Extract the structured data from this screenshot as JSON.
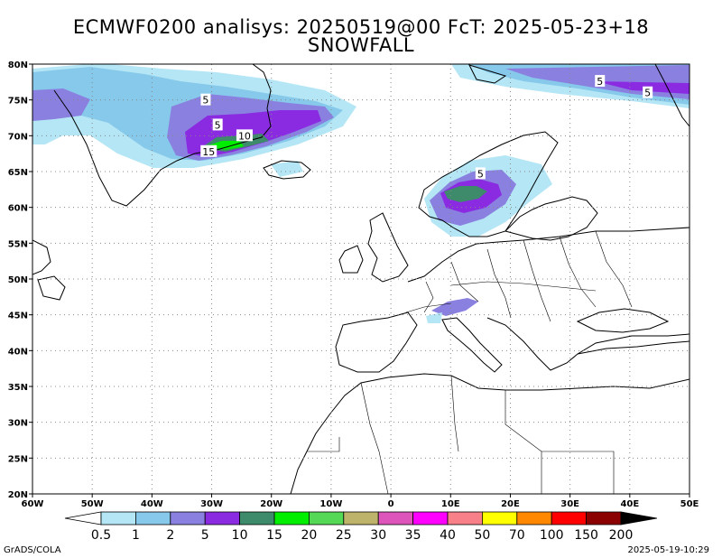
{
  "header": {
    "line1": "ECMWF0200 analisys: 20250519@00 FcT: 2025-05-23+18",
    "line2": "SNOWFALL"
  },
  "map": {
    "lon_range": [
      -60,
      50
    ],
    "lat_range": [
      20,
      80
    ],
    "lon_ticks": [
      "60W",
      "50W",
      "40W",
      "30W",
      "20W",
      "10W",
      "0",
      "10E",
      "20E",
      "30E",
      "40E",
      "50E"
    ],
    "lat_ticks": [
      "80N",
      "75N",
      "70N",
      "65N",
      "60N",
      "55N",
      "50N",
      "45N",
      "40N",
      "35N",
      "30N",
      "25N",
      "20N"
    ],
    "grid": "dotted",
    "contour_labels": [
      {
        "text": "5",
        "lon": -31,
        "lat": 75
      },
      {
        "text": "5",
        "lon": -29,
        "lat": 71.5
      },
      {
        "text": "10",
        "lon": -24.5,
        "lat": 70
      },
      {
        "text": "15",
        "lon": -30.5,
        "lat": 67.8
      },
      {
        "text": "5",
        "lon": 15,
        "lat": 64.7
      },
      {
        "text": "5",
        "lon": 35,
        "lat": 77.6
      },
      {
        "text": "5",
        "lon": 43,
        "lat": 76
      }
    ]
  },
  "colorbar": {
    "labels": [
      "0.5",
      "1",
      "2",
      "5",
      "10",
      "15",
      "20",
      "25",
      "30",
      "35",
      "40",
      "50",
      "70",
      "100",
      "150",
      "200"
    ],
    "colors": [
      "#b4e6f5",
      "#87c9ea",
      "#8a80e0",
      "#8a2be2",
      "#3d8b6a",
      "#00ee00",
      "#55d855",
      "#bdb36b",
      "#dd55bb",
      "#ff00ff",
      "#f88088",
      "#ffff00",
      "#ff8800",
      "#ff0000",
      "#8b0000"
    ]
  },
  "footer": {
    "left": "GrADS/COLA",
    "right": "2025-05-19-10:29"
  }
}
